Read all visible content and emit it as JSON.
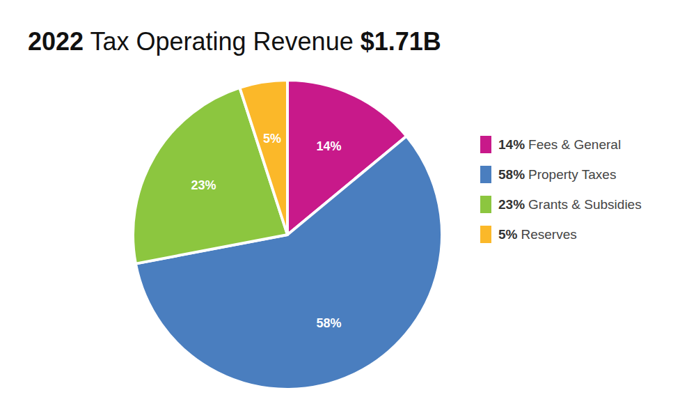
{
  "chart_data": {
    "type": "pie",
    "title": "2022 Tax Operating Revenue $1.71B",
    "categories": [
      "Fees & General",
      "Property Taxes",
      "Grants & Subsidies",
      "Reserves"
    ],
    "values": [
      14,
      58,
      23,
      5
    ],
    "value_labels": [
      "14%",
      "58%",
      "23%",
      "5%"
    ],
    "colors": [
      "#c8198a",
      "#4a7ebf",
      "#8cc63f",
      "#fbb829"
    ],
    "data_labels": true,
    "legend": "right"
  }
}
